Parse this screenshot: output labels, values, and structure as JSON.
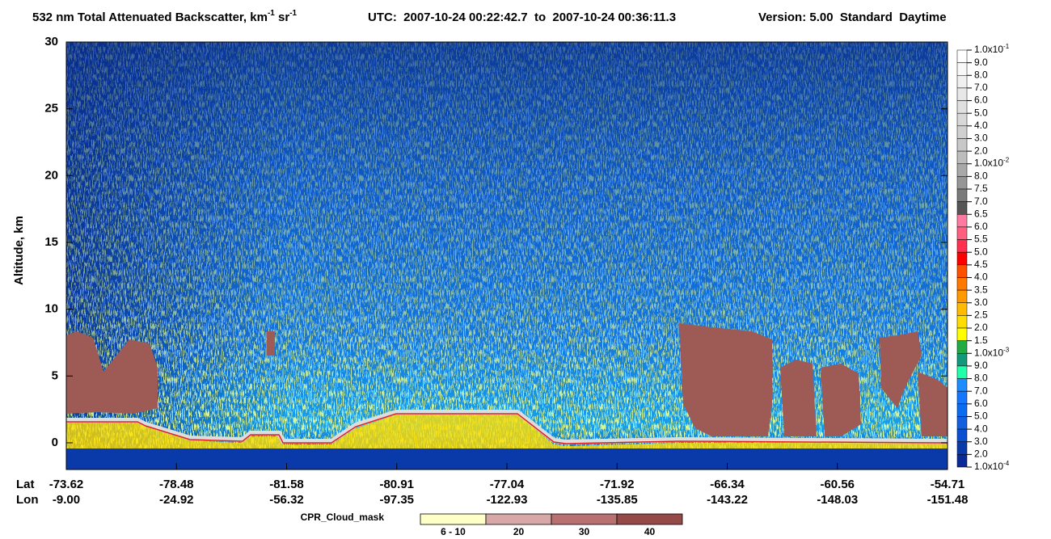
{
  "chart_data": {
    "type": "heatmap",
    "title": [
      {
        "text": "532 nm Total Attenuated Backscatter, km"
      },
      {
        "sup": "-1"
      },
      {
        "text": " sr"
      },
      {
        "sup": "-1"
      }
    ],
    "utc": "UTC:  2007-10-24 00:22:42.7  to  2007-10-24 00:36:11.3",
    "version": "Version: 5.00  Standard  Daytime",
    "y_label": "Altitude, km",
    "ylim": [
      -2,
      30
    ],
    "yticks": [
      0,
      5,
      10,
      15,
      20,
      25,
      30
    ],
    "lat_label": "Lat",
    "lon_label": "Lon",
    "lat": [
      "-73.62",
      "-78.48",
      "-81.58",
      "-80.91",
      "-77.04",
      "-71.92",
      "-66.34",
      "-60.56",
      "-54.71"
    ],
    "lon": [
      "-9.00",
      "-24.92",
      "-56.32",
      "-97.35",
      "-122.93",
      "-135.85",
      "-143.22",
      "-148.03",
      "-151.48"
    ],
    "colorbar": {
      "labels": [
        {
          "text": "1.0x10",
          "sup": "-1"
        },
        "9.0",
        "8.0",
        "7.0",
        "6.0",
        "5.0",
        "4.0",
        "3.0",
        "2.0",
        {
          "text": "1.0x10",
          "sup": "-2"
        },
        "8.0",
        "7.5",
        "7.0",
        "6.5",
        "6.0",
        "5.5",
        "5.0",
        "4.5",
        "4.0",
        "3.5",
        "3.0",
        "2.5",
        "2.0",
        "1.5",
        {
          "text": "1.0x10",
          "sup": "-3"
        },
        "9.0",
        "8.0",
        "7.0",
        "6.0",
        "5.0",
        "4.0",
        "3.0",
        "2.0",
        {
          "text": "1.0x10",
          "sup": "-4"
        }
      ],
      "colors": [
        "#ffffff",
        "#f8f8f8",
        "#f0f0f0",
        "#e8e8e8",
        "#e0e0e0",
        "#d8d8d8",
        "#d0d0d0",
        "#c8c8c8",
        "#bdbdbd",
        "#a8a8a8",
        "#969696",
        "#7a7a7a",
        "#555555",
        "#ff7aa0",
        "#ff6080",
        "#ff3050",
        "#ff0000",
        "#ff5000",
        "#ff7800",
        "#ff9900",
        "#ffbb00",
        "#ffdd00",
        "#ffff00",
        "#22aa44",
        "#11997a",
        "#22ffaa",
        "#1c8cff",
        "#1478ff",
        "#0a6cf0",
        "#1060e0",
        "#0a50d0",
        "#0a3aaa",
        "#0a2a9a"
      ]
    },
    "cpr_legend": {
      "name": "CPR_Cloud_mask",
      "labels": [
        "6 - 10",
        "20",
        "30",
        "40"
      ],
      "colors": [
        "#ffffc8",
        "#d8a8a8",
        "#b87070",
        "#964a48"
      ]
    }
  }
}
